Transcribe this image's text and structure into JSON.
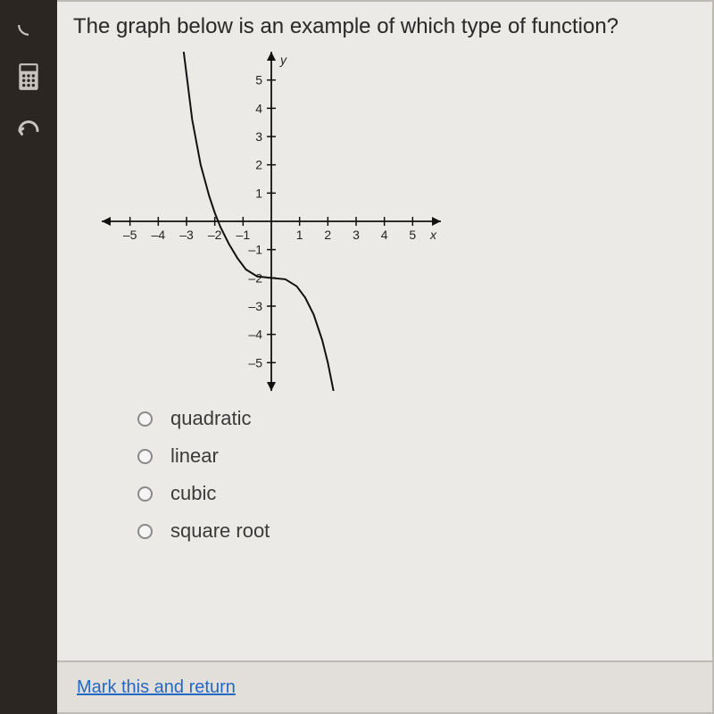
{
  "question": "The graph below is an example of which type of function?",
  "answers": [
    {
      "label": "quadratic"
    },
    {
      "label": "linear"
    },
    {
      "label": "cubic"
    },
    {
      "label": "square root"
    }
  ],
  "footer_link": "Mark this and return",
  "graph": {
    "type": "line",
    "xlim": [
      -6,
      6
    ],
    "ylim": [
      -6,
      6
    ],
    "x_ticks": [
      -5,
      -4,
      -3,
      -2,
      -1,
      1,
      2,
      3,
      4,
      5
    ],
    "y_ticks": [
      -5,
      -4,
      -3,
      -2,
      -1,
      1,
      2,
      3,
      4,
      5
    ],
    "x_axis_label": "x",
    "y_axis_label": "y",
    "tick_label_fontsize": 14,
    "axis_color": "#111111",
    "curve_color": "#111111",
    "curve_width": 2,
    "background_color": "#eceae6",
    "curve_points": [
      {
        "x": -3.1,
        "y": 6.0
      },
      {
        "x": -3.0,
        "y": 5.2
      },
      {
        "x": -2.8,
        "y": 3.6
      },
      {
        "x": -2.5,
        "y": 2.0
      },
      {
        "x": -2.2,
        "y": 0.9
      },
      {
        "x": -2.0,
        "y": 0.3
      },
      {
        "x": -1.8,
        "y": -0.2
      },
      {
        "x": -1.5,
        "y": -0.8
      },
      {
        "x": -1.2,
        "y": -1.3
      },
      {
        "x": -0.9,
        "y": -1.7
      },
      {
        "x": -0.5,
        "y": -1.95
      },
      {
        "x": 0.0,
        "y": -2.0
      },
      {
        "x": 0.5,
        "y": -2.05
      },
      {
        "x": 0.9,
        "y": -2.3
      },
      {
        "x": 1.2,
        "y": -2.7
      },
      {
        "x": 1.5,
        "y": -3.3
      },
      {
        "x": 1.8,
        "y": -4.2
      },
      {
        "x": 2.0,
        "y": -5.0
      },
      {
        "x": 2.2,
        "y": -6.0
      }
    ]
  },
  "colors": {
    "page_bg": "#eceae6",
    "outer_bg": "#1a1612",
    "sidebar_bg": "#2b2622",
    "border": "#bdb9b3",
    "text": "#2a2a2a",
    "link": "#2568c4"
  }
}
